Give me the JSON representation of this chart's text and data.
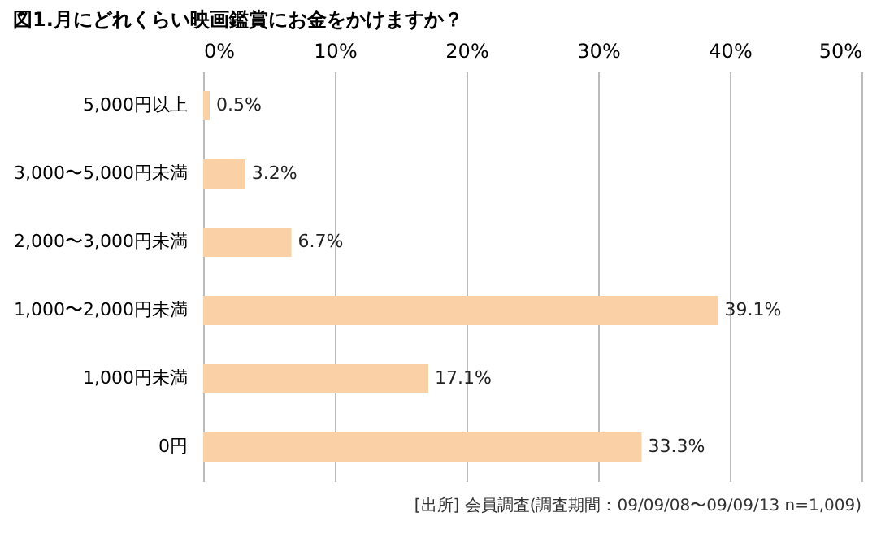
{
  "chart_data": {
    "type": "bar",
    "orientation": "horizontal",
    "title": "図1.月にどれくらい映画鑑賞にお金をかけますか？",
    "categories": [
      "5,000円以上",
      "3,000〜5,000円未満",
      "2,000〜3,000円未満",
      "1,000〜2,000円未満",
      "1,000円未満",
      "0円"
    ],
    "values": [
      0.5,
      3.2,
      6.7,
      39.1,
      17.1,
      33.3
    ],
    "value_labels": [
      "0.5%",
      "3.2%",
      "6.7%",
      "39.1%",
      "17.1%",
      "33.3%"
    ],
    "color": "#fad0a6",
    "xlim": [
      0,
      50
    ],
    "xticks": [
      {
        "value": 0,
        "label": "0%"
      },
      {
        "value": 10,
        "label": "10%"
      },
      {
        "value": 20,
        "label": "20%"
      },
      {
        "value": 30,
        "label": "30%"
      },
      {
        "value": 40,
        "label": "40%"
      },
      {
        "value": 50,
        "label": "50%"
      }
    ],
    "grid": "x",
    "annotations": [
      "[出所] 会員調査(調査期間：09/09/08〜09/09/13 n=1,009)"
    ]
  }
}
